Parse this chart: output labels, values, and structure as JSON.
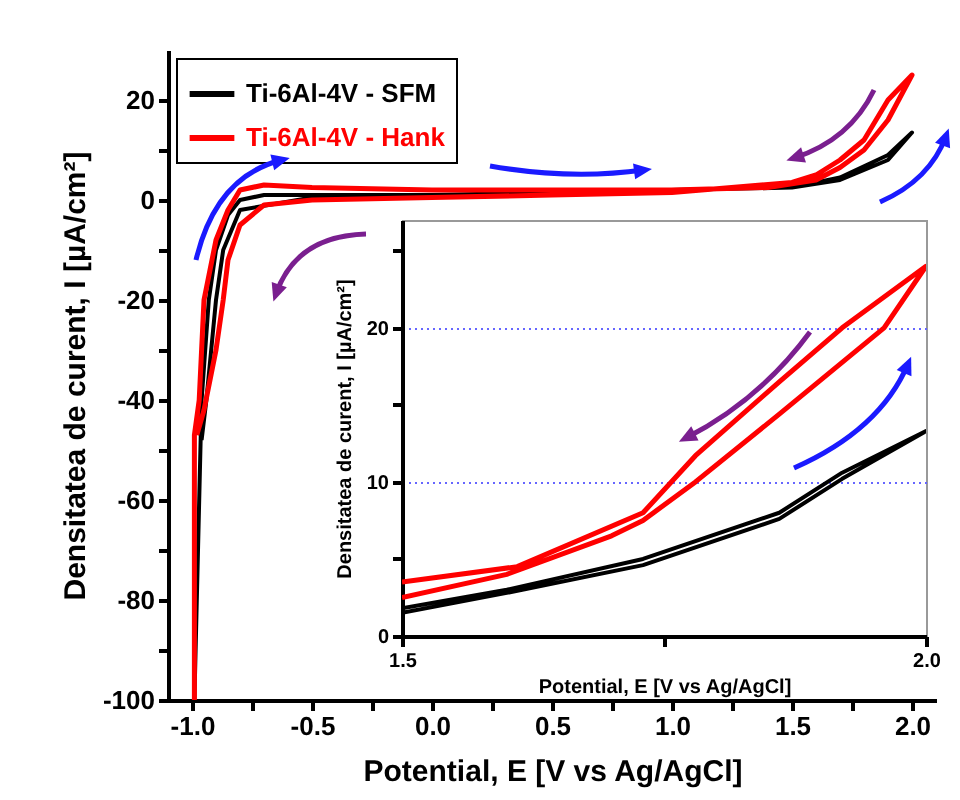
{
  "chart_data": [
    {
      "type": "line",
      "xlabel": "Potential, E [V vs Ag/AgCl]",
      "ylabel": "Densitatea de curent, I [µA/cm²]",
      "legend": "top left",
      "xlim": [
        -1.1,
        2.1
      ],
      "ylim": [
        -100,
        30
      ],
      "xticks": [
        {
          "value": -1,
          "label": "-1.0"
        },
        {
          "value": -0.75,
          "label": null
        },
        {
          "value": -0.5,
          "label": "-0.5"
        },
        {
          "value": -0.25,
          "label": null
        },
        {
          "value": 0,
          "label": "0.0"
        },
        {
          "value": 0.25,
          "label": null
        },
        {
          "value": 0.5,
          "label": "0.5"
        },
        {
          "value": 0.75,
          "label": null
        },
        {
          "value": 1,
          "label": "1.0"
        },
        {
          "value": 1.25,
          "label": null
        },
        {
          "value": 1.5,
          "label": "1.5"
        },
        {
          "value": 1.75,
          "label": null
        },
        {
          "value": 2,
          "label": "2.0"
        }
      ],
      "yticks": [
        -100,
        {
          "value": -90,
          "label": null
        },
        -80,
        {
          "value": -70,
          "label": null
        },
        -60,
        {
          "value": -50,
          "label": null
        },
        -40,
        {
          "value": -30,
          "label": null
        },
        -20,
        {
          "value": -10,
          "label": null
        },
        0,
        {
          "value": 10,
          "label": null
        },
        20
      ],
      "series": [
        {
          "name": "Ti-6Al-4V - SFM",
          "color": "#000000",
          "x": [
            -0.99,
            -0.96,
            -0.93,
            -0.9,
            -0.85,
            -0.8,
            -0.7,
            0,
            1.5,
            1.7,
            1.9,
            2,
            1.9,
            1.7,
            1.5,
            0,
            -0.5,
            -0.8,
            -0.87,
            -0.9,
            -0.94,
            -0.96
          ],
          "values": [
            -100,
            -40,
            -20,
            -10,
            -3,
            0,
            1,
            1,
            2.5,
            4,
            8,
            13.5,
            9,
            4.5,
            2.5,
            1,
            0.5,
            -2,
            -10,
            -20,
            -40,
            -48
          ]
        },
        {
          "name": "Ti-6Al-4V - Hank",
          "color": "#ff0000",
          "x": [
            -0.99,
            -0.99,
            -0.97,
            -0.95,
            -0.9,
            -0.85,
            -0.8,
            -0.7,
            -0.5,
            0,
            0.5,
            1,
            1.4,
            1.6,
            1.7,
            1.8,
            1.9,
            2,
            1.9,
            1.8,
            1.7,
            1.6,
            1.5,
            1,
            0.5,
            0,
            -0.5,
            -0.7,
            -0.8,
            -0.85,
            -0.87,
            -0.9,
            -0.95,
            -0.98
          ],
          "values": [
            -100,
            -47,
            -40,
            -20,
            -8,
            -2,
            2,
            3,
            2.5,
            2,
            2,
            2,
            2.5,
            4,
            6.5,
            10,
            16,
            25,
            20,
            12,
            8,
            5,
            3.5,
            1.5,
            1,
            0.5,
            0,
            -1,
            -5,
            -12,
            -20,
            -30,
            -42,
            -47
          ]
        }
      ]
    },
    {
      "type": "line",
      "xlabel": "Potential, E [V vs Ag/AgCl]",
      "ylabel": "Densitatea de curent, I [µA/cm²]",
      "grid": "y",
      "xlim": [
        1.5,
        2
      ],
      "ylim": [
        0,
        27
      ],
      "xticks": [
        {
          "value": 1.5,
          "label": "1.5"
        },
        {
          "value": 1.75,
          "label": null
        },
        {
          "value": 2,
          "label": "2.0"
        }
      ],
      "yticks": [
        0,
        {
          "value": 5,
          "label": null
        },
        10,
        {
          "value": 15,
          "label": null
        },
        20,
        {
          "value": 25,
          "label": null
        }
      ],
      "series": [
        {
          "color": "#000000",
          "x": [
            1.5,
            1.6,
            1.73,
            1.86,
            1.92,
            2,
            1.92,
            1.86,
            1.73,
            1.6,
            1.5
          ],
          "values": [
            1.5,
            2.8,
            4.6,
            7.6,
            10.2,
            13.3,
            10.6,
            8,
            5,
            3,
            1.8
          ]
        },
        {
          "color": "#ff0000",
          "x": [
            1.5,
            1.6,
            1.7,
            1.73,
            1.78,
            1.86,
            1.96,
            2,
            1.92,
            1.86,
            1.78,
            1.73,
            1.61,
            1.5
          ],
          "values": [
            2.5,
            4,
            6.5,
            7.5,
            10,
            14.4,
            20,
            24,
            20,
            16.5,
            11.7,
            8,
            4.5,
            3.5
          ]
        }
      ]
    }
  ]
}
